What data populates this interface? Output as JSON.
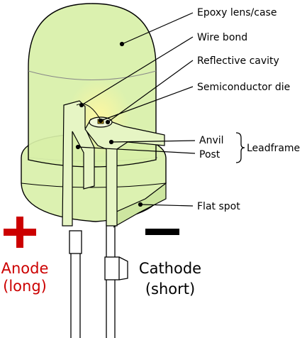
{
  "labels": {
    "epoxy_lens": "Epoxy lens/case",
    "wire_bond": "Wire bond",
    "reflective_cavity": "Reflective cavity",
    "semiconductor_die": "Semiconductor die",
    "anvil": "Anvil",
    "post": "Post",
    "leadframe": "Leadframe",
    "flat_spot": "Flat spot"
  },
  "terminals": {
    "anode_line1": "Anode",
    "anode_line2": "(long)",
    "cathode_line1": "Cathode",
    "cathode_line2": "(short)"
  },
  "colors": {
    "epoxy_fill": "#d8f0a8",
    "outline": "#000000",
    "anode": "#cc0000",
    "cathode": "#000000"
  }
}
